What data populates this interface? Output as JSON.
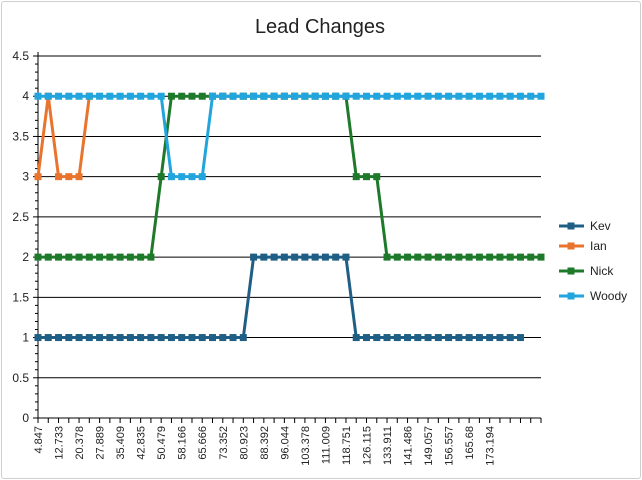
{
  "chart_data": {
    "type": "line",
    "title": "Lead Changes",
    "ylim": [
      0,
      4.5
    ],
    "yticks": [
      "0",
      "0.5",
      "1",
      "1.5",
      "2",
      "2.5",
      "3",
      "3.5",
      "4",
      "4.5"
    ],
    "ytick_values": [
      0,
      0.5,
      1,
      1.5,
      2,
      2.5,
      3,
      3.5,
      4,
      4.5
    ],
    "xtick_labels": [
      "4.847",
      "12.733",
      "20.378",
      "27.889",
      "35.409",
      "42.835",
      "50.479",
      "58.166",
      "65.666",
      "73.352",
      "80.923",
      "88.392",
      "96.044",
      "103.378",
      "111.009",
      "118.751",
      "126.115",
      "133.911",
      "141.486",
      "149.057",
      "156.557",
      "165.68",
      "173.194"
    ],
    "legend_position": "right",
    "grid": true,
    "series": [
      {
        "name": "Kev",
        "color": "#1f5f85",
        "values": [
          1,
          1,
          1,
          1,
          1,
          1,
          1,
          1,
          1,
          1,
          1,
          1,
          1,
          1,
          1,
          1,
          1,
          1,
          1,
          1,
          1,
          2,
          2,
          2,
          2,
          2,
          2,
          2,
          2,
          2,
          2,
          1,
          1,
          1,
          1,
          1,
          1,
          1,
          1,
          1,
          1,
          1,
          1,
          1,
          1,
          1,
          1,
          1
        ]
      },
      {
        "name": "Ian",
        "color": "#e8742e",
        "values": [
          3,
          4,
          3,
          3,
          3,
          4
        ]
      },
      {
        "name": "Nick",
        "color": "#1e7a2a",
        "values": [
          2,
          2,
          2,
          2,
          2,
          2,
          2,
          2,
          2,
          2,
          2,
          2,
          3,
          4,
          4,
          4,
          4,
          4,
          4,
          4,
          4,
          4,
          4,
          4,
          4,
          4,
          4,
          4,
          4,
          4,
          4,
          3,
          3,
          3,
          2,
          2,
          2,
          2,
          2,
          2,
          2,
          2,
          2,
          2,
          2,
          2,
          2,
          2,
          2,
          2
        ]
      },
      {
        "name": "Woody",
        "color": "#22a5dc",
        "values": [
          4,
          4,
          4,
          4,
          4,
          4,
          4,
          4,
          4,
          4,
          4,
          4,
          4,
          3,
          3,
          3,
          3,
          4,
          4,
          4,
          4,
          4,
          4,
          4,
          4,
          4,
          4,
          4,
          4,
          4,
          4,
          4,
          4,
          4,
          4,
          4,
          4,
          4,
          4,
          4,
          4,
          4,
          4,
          4,
          4,
          4,
          4,
          4,
          4,
          4
        ]
      }
    ]
  }
}
